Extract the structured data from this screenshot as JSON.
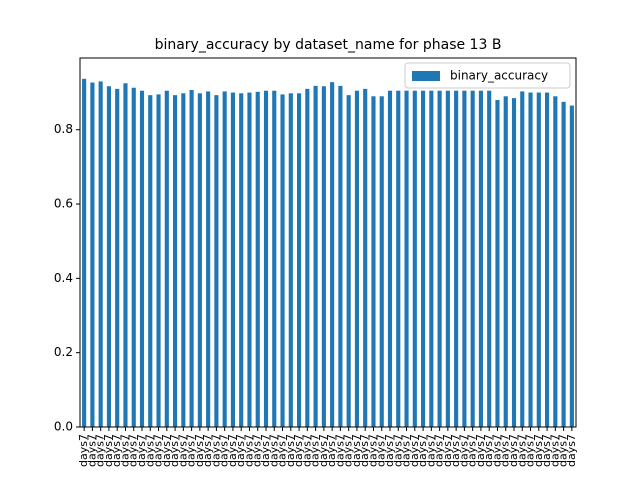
{
  "chart_data": {
    "type": "bar",
    "title": "binary_accuracy by dataset_name for phase 13 B",
    "categories": [
      "days7",
      "days7",
      "days7",
      "days7",
      "days7",
      "days7",
      "days7",
      "days7",
      "days7",
      "days7",
      "days7",
      "days7",
      "days7",
      "days7",
      "days7",
      "days7",
      "days7",
      "days7",
      "days7",
      "days7",
      "days7",
      "days7",
      "days7",
      "days7",
      "days7",
      "days7",
      "days7",
      "days7",
      "days7",
      "days7",
      "days7",
      "days7",
      "days7",
      "days7",
      "days7",
      "days7",
      "days7",
      "days7",
      "days7",
      "days7",
      "days7",
      "days7",
      "days7",
      "days7",
      "days7",
      "days7",
      "days7",
      "days7",
      "days7",
      "days7",
      "days7",
      "days7",
      "days7",
      "days7",
      "days7",
      "days7",
      "days7",
      "days7",
      "days7",
      "days7"
    ],
    "series": [
      {
        "name": "binary_accuracy",
        "color": "#1f77b4",
        "values": [
          0.937,
          0.927,
          0.93,
          0.917,
          0.91,
          0.925,
          0.913,
          0.905,
          0.893,
          0.895,
          0.905,
          0.893,
          0.898,
          0.907,
          0.898,
          0.903,
          0.893,
          0.903,
          0.9,
          0.898,
          0.9,
          0.902,
          0.905,
          0.905,
          0.895,
          0.898,
          0.898,
          0.91,
          0.918,
          0.917,
          0.928,
          0.918,
          0.893,
          0.905,
          0.91,
          0.89,
          0.89,
          0.905,
          0.905,
          0.905,
          0.905,
          0.905,
          0.905,
          0.905,
          0.905,
          0.905,
          0.905,
          0.905,
          0.905,
          0.905,
          0.88,
          0.89,
          0.885,
          0.903,
          0.9,
          0.9,
          0.9,
          0.89,
          0.875,
          0.865
        ]
      }
    ],
    "ylim": [
      0,
      0.993
    ],
    "yticks": [
      {
        "value": 0,
        "label": "0.0"
      },
      0.2,
      0.4,
      0.6,
      0.8
    ],
    "legend": "upper right"
  }
}
